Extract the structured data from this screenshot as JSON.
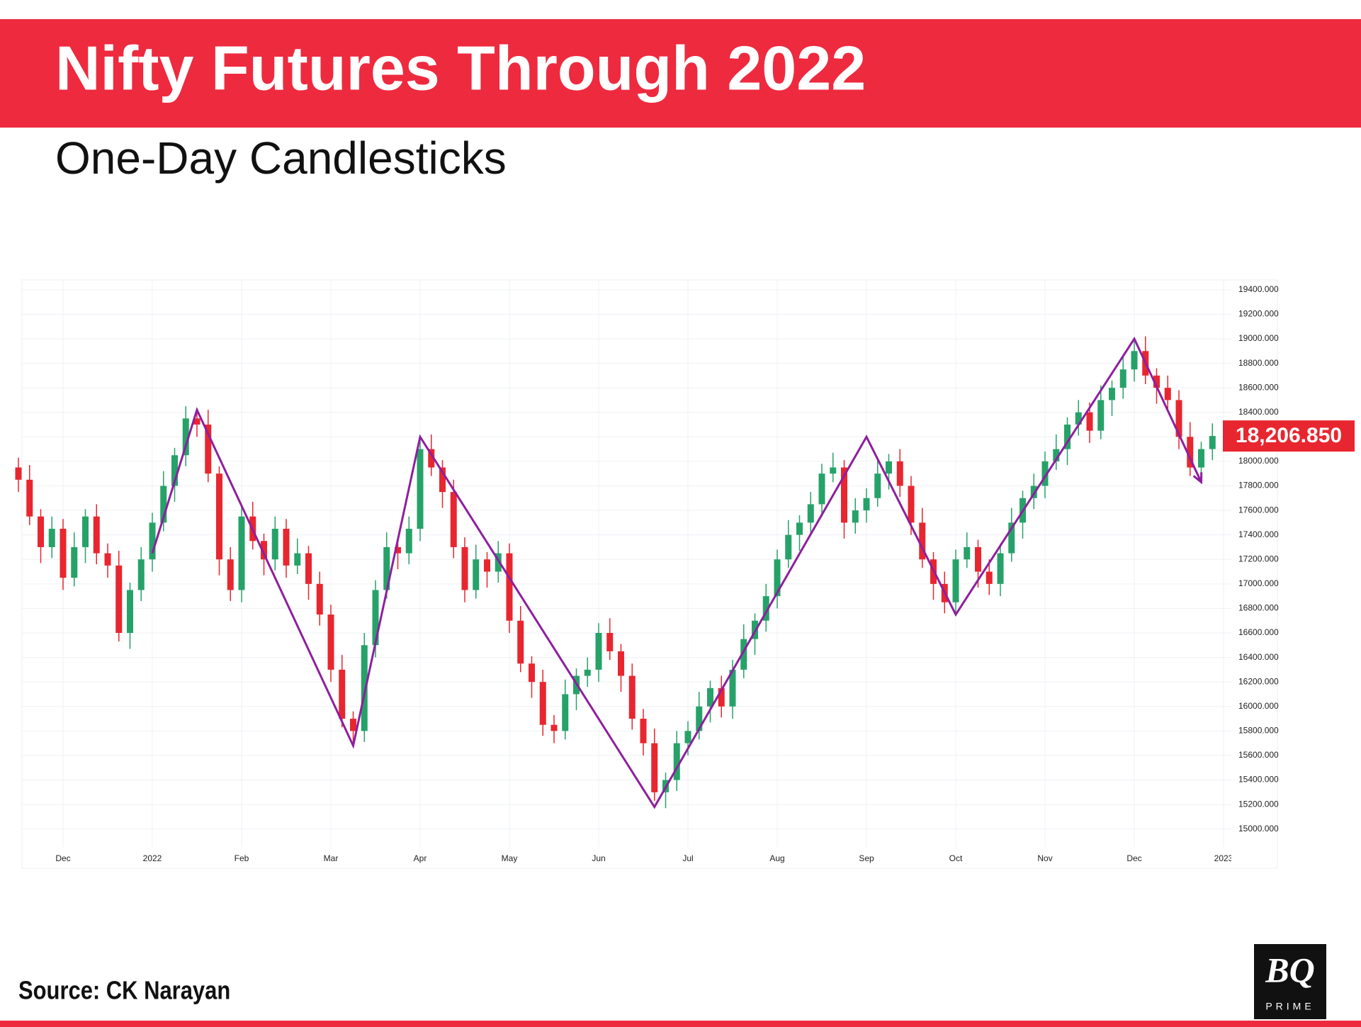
{
  "chart_data": {
    "type": "candlestick",
    "title": "Nifty Futures Through 2022",
    "subtitle": "One-Day Candlesticks",
    "source": "Source: CK Narayan",
    "categories": [
      null,
      null,
      null,
      null,
      "Dec",
      null,
      null,
      null,
      null,
      null,
      null,
      null,
      "2022",
      null,
      null,
      null,
      null,
      null,
      null,
      null,
      "Feb",
      null,
      null,
      null,
      null,
      null,
      null,
      null,
      "Mar",
      null,
      null,
      null,
      null,
      null,
      null,
      null,
      "Apr",
      null,
      null,
      null,
      null,
      null,
      null,
      null,
      "May",
      null,
      null,
      null,
      null,
      null,
      null,
      null,
      "Jun",
      null,
      null,
      null,
      null,
      null,
      null,
      null,
      "Jul",
      null,
      null,
      null,
      null,
      null,
      null,
      null,
      "Aug",
      null,
      null,
      null,
      null,
      null,
      null,
      null,
      "Sep",
      null,
      null,
      null,
      null,
      null,
      null,
      null,
      "Oct",
      null,
      null,
      null,
      null,
      null,
      null,
      null,
      "Nov",
      null,
      null,
      null,
      null,
      null,
      null,
      null,
      "Dec",
      null,
      null,
      null,
      null,
      null,
      null,
      null,
      "2023"
    ],
    "open": [
      17950,
      17850,
      17550,
      17300,
      17450,
      17050,
      17300,
      17550,
      17250,
      17150,
      16600,
      16950,
      17200,
      17500,
      17800,
      18050,
      18350,
      18300,
      17900,
      17200,
      16950,
      17550,
      17350,
      17200,
      17450,
      17150,
      17250,
      17000,
      16750,
      16300,
      15900,
      15800,
      16500,
      16950,
      17300,
      17250,
      17450,
      18100,
      17950,
      17750,
      17300,
      16950,
      17200,
      17100,
      17250,
      16700,
      16350,
      16200,
      15850,
      15800,
      16100,
      16250,
      16300,
      16600,
      16450,
      16250,
      15900,
      15700,
      15300,
      15400,
      15700,
      15800,
      16000,
      16150,
      16000,
      16300,
      16550,
      16700,
      16900,
      17200,
      17400,
      17500,
      17650,
      17900,
      17950,
      17500,
      17600,
      17700,
      17900,
      18000,
      17800,
      17500,
      17200,
      17000,
      16850,
      17200,
      17300,
      17100,
      17000,
      17250,
      17500,
      17700,
      17800,
      18000,
      18100,
      18300,
      18400,
      18250,
      18500,
      18600,
      18750,
      18900,
      18700,
      18600,
      18500,
      18200,
      17950,
      18100,
      null
    ],
    "high": [
      18030,
      17970,
      17610,
      17550,
      17530,
      17420,
      17610,
      17650,
      17330,
      17270,
      17010,
      17300,
      17580,
      17920,
      18110,
      18450,
      18430,
      18420,
      17960,
      17300,
      17630,
      17670,
      17410,
      17550,
      17530,
      17370,
      17310,
      17100,
      16830,
      16420,
      15960,
      16600,
      17030,
      17420,
      17360,
      17550,
      18180,
      18220,
      18010,
      17850,
      17380,
      17320,
      17260,
      17350,
      17330,
      16820,
      16410,
      16300,
      15930,
      16220,
      16310,
      16400,
      16680,
      16720,
      16510,
      16350,
      15980,
      15820,
      15460,
      15800,
      15880,
      16120,
      16210,
      16250,
      16380,
      16670,
      16760,
      17000,
      17280,
      17520,
      17560,
      17750,
      17980,
      18070,
      18010,
      17700,
      17780,
      18020,
      18060,
      18100,
      17880,
      17620,
      17260,
      17100,
      17280,
      17420,
      17360,
      17200,
      17330,
      17620,
      17760,
      17900,
      18080,
      18220,
      18360,
      18500,
      18480,
      18620,
      18660,
      18850,
      18980,
      19020,
      18760,
      18700,
      18580,
      18320,
      18160,
      18310,
      null
    ],
    "low": [
      17750,
      17480,
      17170,
      17210,
      16950,
      16980,
      17170,
      17160,
      17050,
      16530,
      16470,
      16860,
      17100,
      17430,
      17670,
      17960,
      18200,
      17830,
      17070,
      16860,
      16850,
      17280,
      17070,
      17110,
      17050,
      17080,
      16870,
      16660,
      16200,
      15830,
      15670,
      15710,
      16400,
      16880,
      17120,
      17160,
      17350,
      17880,
      17620,
      17210,
      16850,
      16880,
      16970,
      17010,
      16600,
      16280,
      16070,
      15760,
      15700,
      15730,
      15970,
      16160,
      16200,
      16380,
      16120,
      15810,
      15600,
      15230,
      15170,
      15310,
      15600,
      15730,
      15870,
      15910,
      15900,
      16230,
      16420,
      16610,
      16800,
      17130,
      17270,
      17410,
      17550,
      17830,
      17370,
      17410,
      17500,
      17630,
      17770,
      17710,
      17400,
      17130,
      16870,
      16760,
      16750,
      17130,
      16970,
      16910,
      16900,
      17180,
      17370,
      17610,
      17700,
      17930,
      17970,
      18210,
      18150,
      18180,
      18370,
      18510,
      18650,
      18630,
      18470,
      18410,
      18100,
      17880,
      17820,
      18010,
      null
    ],
    "close": [
      17850,
      17550,
      17300,
      17450,
      17050,
      17300,
      17550,
      17250,
      17150,
      16600,
      16950,
      17200,
      17500,
      17800,
      18050,
      18350,
      18300,
      17900,
      17200,
      16950,
      17550,
      17350,
      17200,
      17450,
      17150,
      17250,
      17000,
      16750,
      16300,
      15900,
      15800,
      16500,
      16950,
      17300,
      17250,
      17450,
      18100,
      17950,
      17750,
      17300,
      16950,
      17200,
      17100,
      17250,
      16700,
      16350,
      16200,
      15850,
      15800,
      16100,
      16250,
      16300,
      16600,
      16450,
      16250,
      15900,
      15700,
      15300,
      15400,
      15700,
      15800,
      16000,
      16150,
      16000,
      16300,
      16550,
      16700,
      16900,
      17200,
      17400,
      17500,
      17650,
      17900,
      17950,
      17500,
      17600,
      17700,
      17900,
      18000,
      17800,
      17500,
      17200,
      17000,
      16850,
      17200,
      17300,
      17100,
      17000,
      17250,
      17500,
      17700,
      17800,
      18000,
      18100,
      18300,
      18400,
      18250,
      18500,
      18600,
      18750,
      18900,
      18700,
      18600,
      18500,
      18200,
      17950,
      18100,
      18206.85,
      null
    ],
    "up_color": "#26a269",
    "down_color": "#e8262f",
    "trendline": {
      "color": "#8e1f9e",
      "x": [
        12,
        16,
        30,
        36,
        57,
        76,
        84,
        100,
        106
      ],
      "values": [
        17250,
        18420,
        15680,
        18200,
        15180,
        18200,
        16750,
        19000,
        17830
      ]
    },
    "last_price": {
      "value": 18206.85,
      "label": "18,206.850"
    },
    "ylim": [
      14680,
      19480
    ],
    "yticks": [
      {
        "value": 15000,
        "label": "15000.000"
      },
      {
        "value": 15200,
        "label": "15200.000"
      },
      {
        "value": 15400,
        "label": "15400.000"
      },
      {
        "value": 15600,
        "label": "15600.000"
      },
      {
        "value": 15800,
        "label": "15800.000"
      },
      {
        "value": 16000,
        "label": "16000.000"
      },
      {
        "value": 16200,
        "label": "16200.000"
      },
      {
        "value": 16400,
        "label": "16400.000"
      },
      {
        "value": 16600,
        "label": "16600.000"
      },
      {
        "value": 16800,
        "label": "16800.000"
      },
      {
        "value": 17000,
        "label": "17000.000"
      },
      {
        "value": 17200,
        "label": "17200.000"
      },
      {
        "value": 17400,
        "label": "17400.000"
      },
      {
        "value": 17600,
        "label": "17600.000"
      },
      {
        "value": 17800,
        "label": "17800.000"
      },
      {
        "value": 18000,
        "label": "18000.000"
      },
      {
        "value": 18200,
        "label": "18200.000"
      },
      {
        "value": 18400,
        "label": "18400.000"
      },
      {
        "value": 18600,
        "label": "18600.000"
      },
      {
        "value": 18800,
        "label": "18800.000"
      },
      {
        "value": 19000,
        "label": "19000.000"
      },
      {
        "value": 19200,
        "label": "19200.000"
      },
      {
        "value": 19400,
        "label": "19400.000"
      }
    ],
    "grid": true
  },
  "logo": {
    "top": "BQ",
    "bottom": "PRIME"
  }
}
